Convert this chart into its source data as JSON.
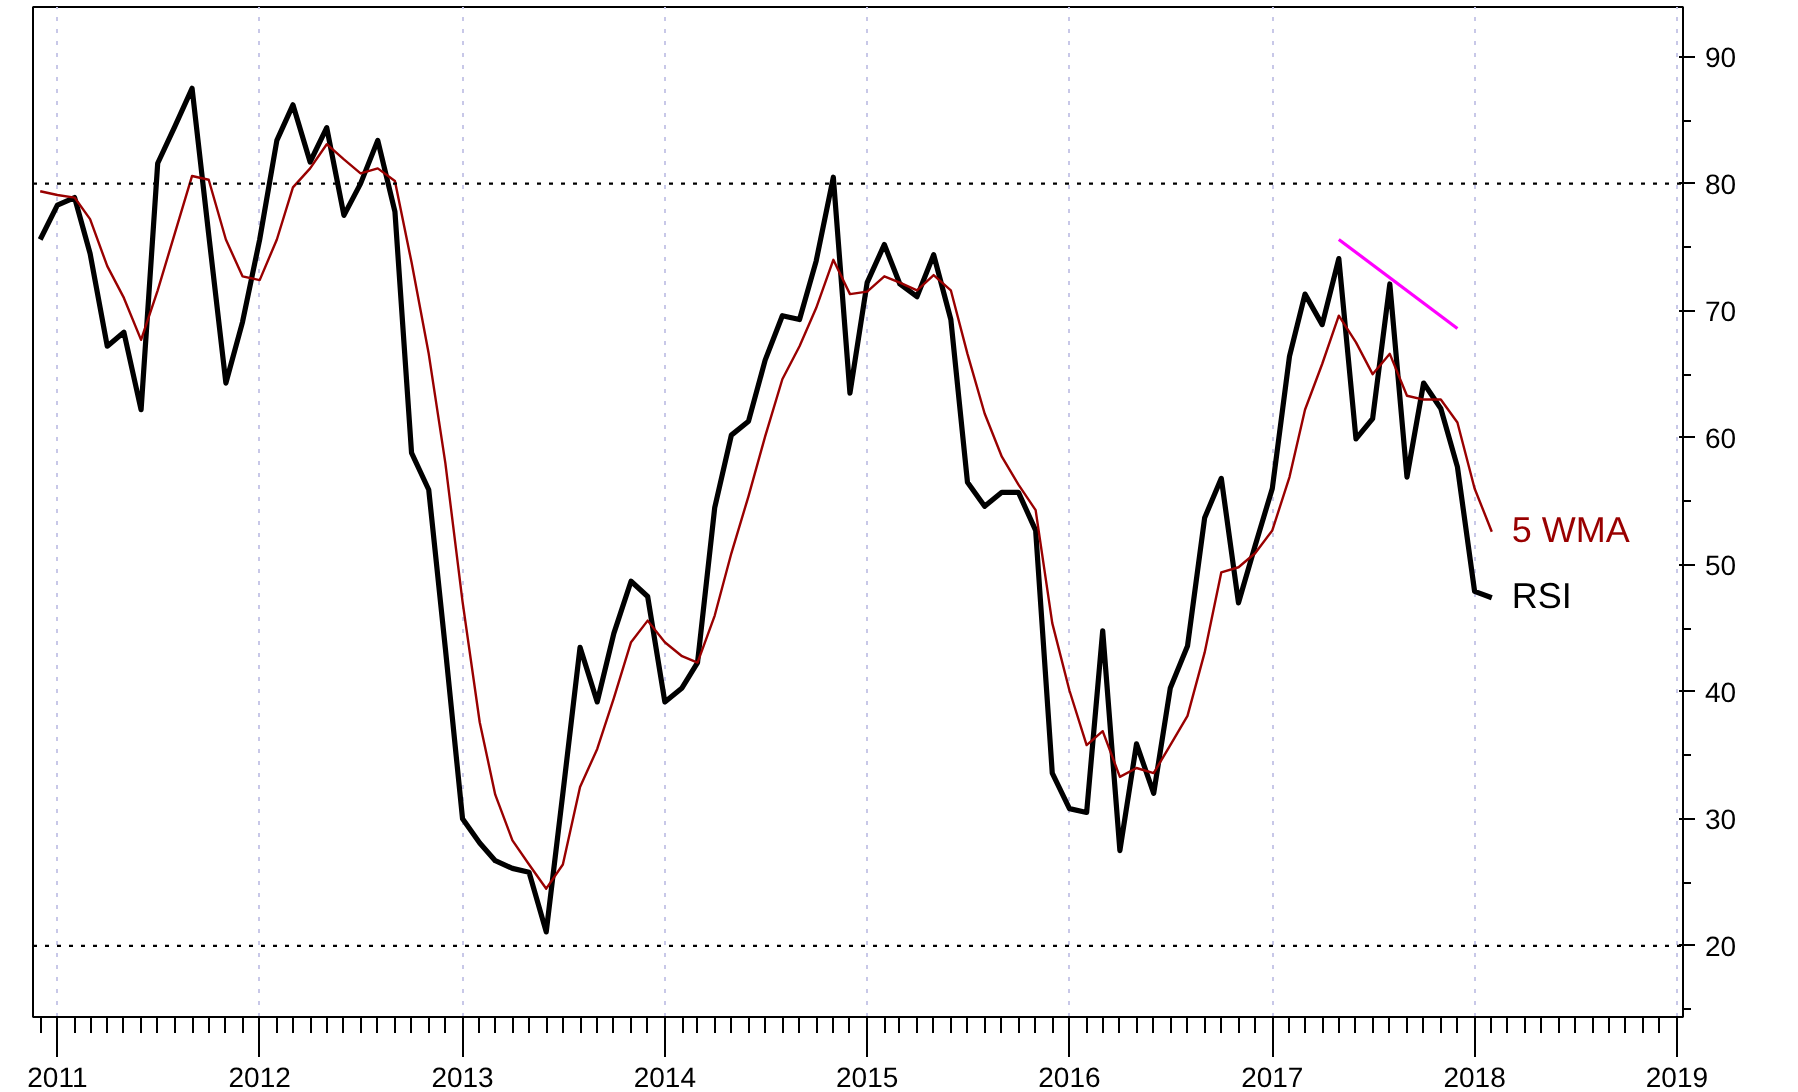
{
  "chart_data": {
    "type": "line",
    "x": [
      "2010-12",
      "2011-01",
      "2011-02",
      "2011-03",
      "2011-04",
      "2011-05",
      "2011-06",
      "2011-07",
      "2011-08",
      "2011-09",
      "2011-10",
      "2011-11",
      "2011-12",
      "2012-01",
      "2012-02",
      "2012-03",
      "2012-04",
      "2012-05",
      "2012-06",
      "2012-07",
      "2012-08",
      "2012-09",
      "2012-10",
      "2012-11",
      "2012-12",
      "2013-01",
      "2013-02",
      "2013-03",
      "2013-04",
      "2013-05",
      "2013-06",
      "2013-07",
      "2013-08",
      "2013-09",
      "2013-10",
      "2013-11",
      "2013-12",
      "2014-01",
      "2014-02",
      "2014-03",
      "2014-04",
      "2014-05",
      "2014-06",
      "2014-07",
      "2014-08",
      "2014-09",
      "2014-10",
      "2014-11",
      "2014-12",
      "2015-01",
      "2015-02",
      "2015-03",
      "2015-04",
      "2015-05",
      "2015-06",
      "2015-07",
      "2015-08",
      "2015-09",
      "2015-10",
      "2015-11",
      "2015-12",
      "2016-01",
      "2016-02",
      "2016-03",
      "2016-04",
      "2016-05",
      "2016-06",
      "2016-07",
      "2016-08",
      "2016-09",
      "2016-10",
      "2016-11",
      "2016-12",
      "2017-01",
      "2017-02",
      "2017-03",
      "2017-04",
      "2017-05",
      "2017-06",
      "2017-07",
      "2017-08",
      "2017-09",
      "2017-10",
      "2017-11",
      "2017-12",
      "2018-01",
      "2018-02"
    ],
    "series": [
      {
        "name": "RSI",
        "color": "#000000",
        "values": [
          75.6,
          78.3,
          78.9,
          74.5,
          67.2,
          68.3,
          62.2,
          81.6,
          84.5,
          87.5,
          76,
          64.3,
          69.1,
          75.6,
          83.4,
          86.2,
          81.7,
          84.4,
          77.5,
          80,
          83.4,
          77.8,
          58.8,
          55.9,
          43.4,
          30,
          28.1,
          26.7,
          26.1,
          25.8,
          21.1,
          32,
          43.5,
          39.2,
          44.6,
          48.7,
          47.5,
          39.2,
          40.3,
          42.3,
          54.5,
          60.2,
          61.3,
          66.1,
          69.6,
          69.3,
          73.9,
          80.5,
          63.5,
          72.2,
          75.2,
          72.1,
          71.1,
          74.4,
          69.3,
          56.5,
          54.6,
          55.7,
          55.7,
          52.7,
          33.6,
          30.8,
          30.5,
          44.8,
          27.5,
          35.9,
          32,
          40.3,
          43.6,
          53.7,
          56.8,
          47,
          51.5,
          56,
          66.4,
          71.3,
          68.9,
          74.1,
          59.9,
          61.5,
          72.1,
          56.9,
          64.3,
          62.3,
          57.7,
          47.9,
          47.4
        ]
      },
      {
        "name": "5 WMA",
        "color": "#990000",
        "values": [
          79.4,
          79.1,
          78.9,
          77.2,
          73.5,
          71,
          67.7,
          71.6,
          76.1,
          80.6,
          80.3,
          75.6,
          72.7,
          72.4,
          75.6,
          79.7,
          81.2,
          83.1,
          81.9,
          80.8,
          81.2,
          80.2,
          73.8,
          66.6,
          58,
          47.1,
          37.6,
          31.9,
          28.3,
          26.4,
          24.5,
          26.4,
          32.5,
          35.5,
          39.5,
          43.9,
          45.6,
          43.9,
          42.8,
          42.3,
          46,
          50.9,
          55.4,
          60.1,
          64.6,
          67.2,
          70.2,
          74,
          71.3,
          71.5,
          72.7,
          72.2,
          71.6,
          72.8,
          71.6,
          66.6,
          61.9,
          58.5,
          56.3,
          54.3,
          45.4,
          40.1,
          35.8,
          36.9,
          33.3,
          34,
          33.6,
          35.8,
          38.1,
          43.1,
          49.4,
          49.8,
          50.9,
          52.7,
          56.9,
          62.2,
          65.8,
          69.6,
          67.5,
          65,
          66.6,
          63.3,
          63,
          63,
          61.2,
          56,
          52.6
        ]
      },
      {
        "type": "line",
        "color": "#ff00ff",
        "x": [
          "2017-05",
          "2017-12"
        ],
        "values": [
          75.6,
          68.6
        ]
      }
    ],
    "xlim": [
      "2010-11-18",
      "2019-01-12"
    ],
    "xticks": [
      "2011",
      "2012",
      "2013",
      "2014",
      "2015",
      "2016",
      "2017",
      "2018",
      "2019"
    ],
    "ylim": [
      14.4,
      93.9
    ],
    "yticks": [
      20,
      30,
      40,
      50,
      60,
      70,
      80,
      90
    ],
    "ref_lines": [
      {
        "axis": "y",
        "value": 80,
        "color": "#000000",
        "line_style": "dotted"
      },
      {
        "axis": "y",
        "value": 20,
        "color": "#000000",
        "line_style": "dotted"
      }
    ],
    "grid": "x",
    "marker": "none",
    "line_style": "solid"
  }
}
